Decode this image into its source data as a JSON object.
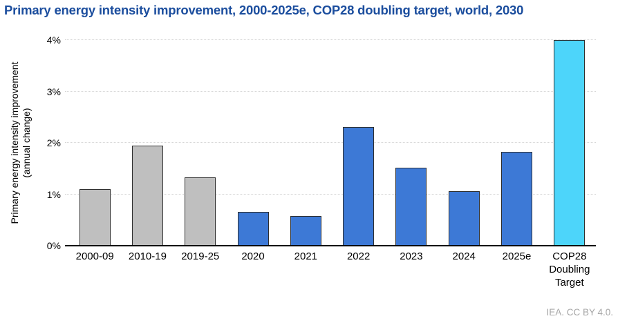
{
  "title": "Primary energy intensity improvement, 2000-2025e, COP28 doubling target, world, 2030",
  "credit": "IEA. CC BY 4.0.",
  "chart_data": {
    "type": "bar",
    "title": "Primary energy intensity improvement, 2000-2025e, COP28 doubling target, world, 2030",
    "xlabel": "",
    "ylabel": "Primary energy intensity improvement (annual change)",
    "ylabel_line1": "Primary energy intensity improvement",
    "ylabel_line2": "(annual change)",
    "categories": [
      "2000-09",
      "2010-19",
      "2019-25",
      "2020",
      "2021",
      "2022",
      "2023",
      "2024",
      "2025e",
      "COP28 Doubling Target"
    ],
    "values": [
      1.1,
      1.95,
      1.33,
      0.66,
      0.58,
      2.31,
      1.52,
      1.06,
      1.83,
      4.0
    ],
    "unit": "%",
    "y_ticks": [
      "0%",
      "1%",
      "2%",
      "3%",
      "4%"
    ],
    "ylim": [
      0,
      4
    ],
    "grid": true,
    "legend_position": "none",
    "bar_colors": [
      "#bfbfbf",
      "#bfbfbf",
      "#bfbfbf",
      "#3d79d6",
      "#3d79d6",
      "#3d79d6",
      "#3d79d6",
      "#3d79d6",
      "#3d79d6",
      "#4dd5fa"
    ],
    "colors": {
      "gray_bar": "#bfbfbf",
      "blue_bar": "#3d79d6",
      "cyan_bar": "#4dd5fa",
      "bar_border": "#2e2e2e",
      "title_text": "#1c4e9e",
      "gridline": "#d6d6d6",
      "axis_line": "#000000",
      "credit_text": "#a6a6a6"
    }
  }
}
